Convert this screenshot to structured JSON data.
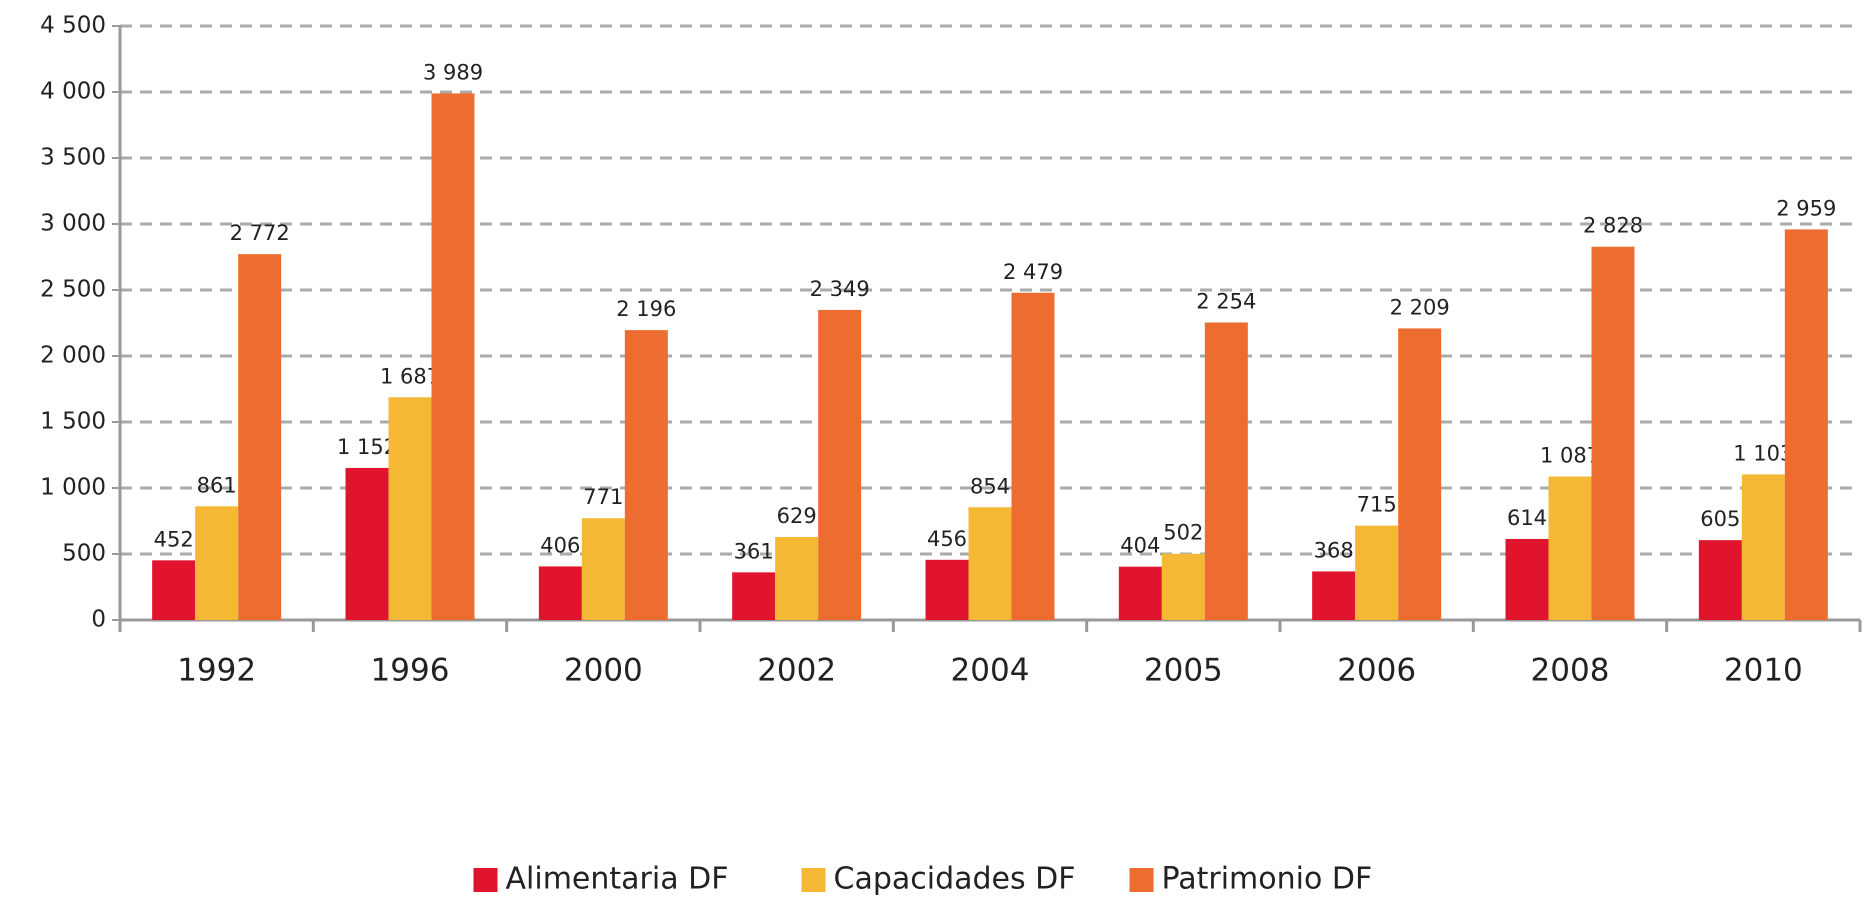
{
  "chart_data": {
    "type": "bar",
    "categories": [
      "1992",
      "1996",
      "2000",
      "2002",
      "2004",
      "2005",
      "2006",
      "2008",
      "2010"
    ],
    "series": [
      {
        "name": "Alimentaria DF",
        "color": "#e0142d",
        "values": [
          452,
          1152,
          406,
          361,
          456,
          404,
          368,
          614,
          605
        ],
        "value_labels": [
          "452",
          "1 152",
          "406",
          "361",
          "456",
          "404",
          "368",
          "614",
          "605"
        ]
      },
      {
        "name": "Capacidades DF",
        "color": "#f5b835",
        "values": [
          861,
          1687,
          771,
          629,
          854,
          502,
          715,
          1087,
          1103
        ],
        "value_labels": [
          "861",
          "1 687",
          "771",
          "629",
          "854",
          "502",
          "715",
          "1 087",
          "1 103"
        ]
      },
      {
        "name": "Patrimonio DF",
        "color": "#ed6d31",
        "values": [
          2772,
          3989,
          2196,
          2349,
          2479,
          2254,
          2209,
          2828,
          2959
        ],
        "value_labels": [
          "2 772",
          "3 989",
          "2 196",
          "2 349",
          "2 479",
          "2 254",
          "2 209",
          "2 828",
          "2 959"
        ]
      }
    ],
    "ylim": [
      0,
      4500
    ],
    "yticks": [
      0,
      500,
      {
        "value": 1000,
        "label": "1 000"
      },
      {
        "value": 1500,
        "label": "1 500"
      },
      {
        "value": 2000,
        "label": "2 000"
      },
      {
        "value": 2500,
        "label": "2 500"
      },
      {
        "value": 3000,
        "label": "3 000"
      },
      {
        "value": 3500,
        "label": "3 500"
      },
      {
        "value": 4000,
        "label": "4 000"
      },
      {
        "value": 4500,
        "label": "4 500"
      }
    ],
    "grid": true,
    "legend": "bottom"
  }
}
